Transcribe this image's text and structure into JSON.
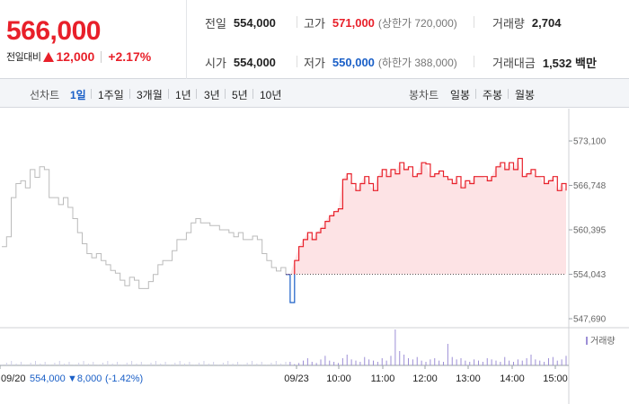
{
  "summary": {
    "current_price": "566,000",
    "change_label": "전일대비",
    "change_amount": "12,000",
    "change_percent": "+2.17%"
  },
  "stats": {
    "prev_close_label": "전일",
    "prev_close": "554,000",
    "high_label": "고가",
    "high": "571,000",
    "upper_limit": "(상한가 720,000)",
    "volume_label": "거래량",
    "volume": "2,704",
    "open_label": "시가",
    "open": "554,000",
    "low_label": "저가",
    "low": "550,000",
    "lower_limit": "(하한가 388,000)",
    "amount_label": "거래대금",
    "amount": "1,532 백만"
  },
  "toolbar": {
    "line_label": "선차트",
    "line_periods": [
      "1일",
      "1주일",
      "3개월",
      "1년",
      "3년",
      "5년",
      "10년"
    ],
    "active_period": "1일",
    "candle_label": "봉차트",
    "candle_periods": [
      "일봉",
      "주봉",
      "월봉"
    ]
  },
  "colors": {
    "up": "#e8202a",
    "down": "#1a5fc7",
    "prev_day_line": "#bbbbbb",
    "area_fill": "#fde3e5",
    "volume_bar": "#9d8fd6"
  },
  "chart_data": {
    "type": "line",
    "ylim": [
      547690,
      573100
    ],
    "yticks": [
      "573,100",
      "566,748",
      "560,395",
      "554,043",
      "547,690"
    ],
    "reference_price": 554043,
    "xticks": [
      "09/20",
      "09/23",
      "10:00",
      "11:00",
      "12:00",
      "13:00",
      "14:00",
      "15:00"
    ],
    "prev_day_note": {
      "date": "09/20",
      "price": "554,000",
      "change": "▼8,000",
      "percent": "(-1.42%)"
    },
    "volume_legend": "거래량",
    "series": [
      {
        "name": "09/20",
        "values": [
          558000,
          559400,
          565000,
          567000,
          567400,
          566400,
          569000,
          567900,
          569400,
          569000,
          565000,
          565000,
          564000,
          565000,
          563600,
          562000,
          560000,
          558400,
          557000,
          556400,
          557000,
          556000,
          555400,
          554600,
          554200,
          553200,
          552400,
          553600,
          553200,
          552000,
          552000,
          553000,
          554000,
          555400,
          556000,
          556000,
          557400,
          559000,
          559000,
          560000,
          561400,
          562000,
          561400,
          561400,
          561000,
          561000,
          560400,
          560400,
          560000,
          559400,
          560000,
          559000,
          559000,
          559500,
          559000,
          557000,
          556000,
          555000,
          554500,
          555000,
          554000
        ]
      },
      {
        "name": "09/23",
        "values": [
          554000,
          550000,
          556000,
          558000,
          559000,
          560000,
          559000,
          560000,
          560600,
          561600,
          562400,
          563000,
          563400,
          567600,
          568400,
          567000,
          566000,
          567000,
          568000,
          567000,
          566000,
          568000,
          569000,
          568000,
          569000,
          568400,
          570000,
          569000,
          569400,
          568000,
          568400,
          570000,
          569800,
          568000,
          568400,
          568800,
          568000,
          567600,
          567000,
          568000,
          566400,
          567400,
          567000,
          568000,
          568000,
          568000,
          567400,
          568000,
          569400,
          570000,
          569000,
          570000,
          569000,
          570600,
          568000,
          568400,
          569000,
          568000,
          568000,
          567000,
          567400,
          568000,
          566000,
          567000,
          566000
        ]
      },
      {
        "name": "거래량",
        "values": [
          2,
          3,
          1,
          2,
          4,
          6,
          3,
          2,
          5,
          8,
          4,
          3,
          2,
          6,
          9,
          5,
          4,
          3,
          7,
          5,
          4,
          3,
          6,
          4,
          8,
          30,
          12,
          9,
          6,
          5,
          7,
          4,
          3,
          5,
          6,
          4,
          3,
          18,
          7,
          5,
          6,
          4,
          3,
          5,
          4,
          3,
          6,
          5,
          4,
          3,
          7,
          4,
          3,
          5,
          4,
          6,
          9,
          5,
          4,
          3,
          6,
          7,
          4,
          5,
          8
        ]
      }
    ]
  }
}
